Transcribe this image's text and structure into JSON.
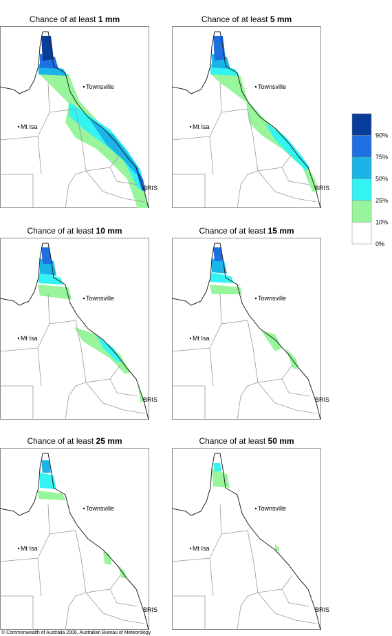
{
  "panels": [
    {
      "title_prefix": "Chance of at least",
      "amount": "1 mm"
    },
    {
      "title_prefix": "Chance of at least",
      "amount": "5 mm"
    },
    {
      "title_prefix": "Chance of at least",
      "amount": "10 mm"
    },
    {
      "title_prefix": "Chance of at least",
      "amount": "15 mm"
    },
    {
      "title_prefix": "Chance of at least",
      "amount": "25 mm"
    },
    {
      "title_prefix": "Chance of at least",
      "amount": "50 mm"
    }
  ],
  "places": {
    "townsville": "Townsville",
    "mt_isa": "Mt Isa",
    "brisbane": "BRIS"
  },
  "legend": {
    "labels": [
      "90%",
      "75%",
      "50%",
      "25%",
      "10%",
      "0%"
    ],
    "colors": [
      "#0a3c9a",
      "#1e6fe0",
      "#1ab4e8",
      "#33f3f3",
      "#99f59c",
      "#ffffff"
    ]
  },
  "footer": "© Commonwealth of Australia 2006, Australian Bureau of Meteorology"
}
